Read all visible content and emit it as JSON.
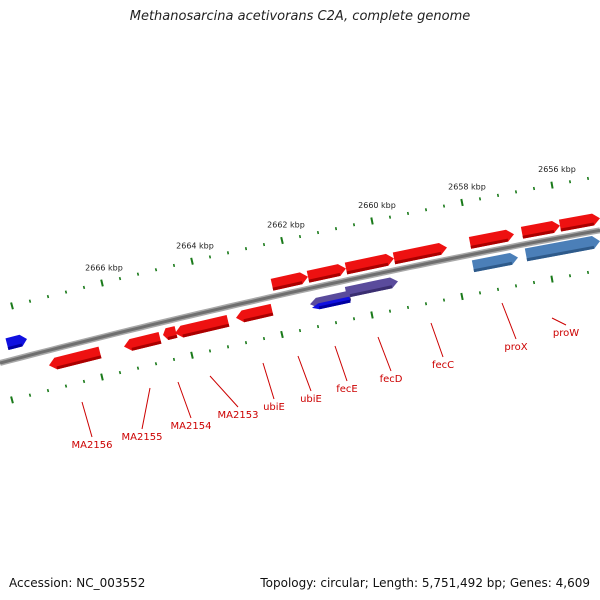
{
  "title": "Methanosarcina acetivorans C2A, complete genome",
  "footer": {
    "accession": "Accession: NC_003552",
    "summary": "Topology: circular; Length: 5,751,492 bp; Genes: 4,609"
  },
  "colors": {
    "gene": "#ee1111",
    "gene_dark": "#aa0000",
    "rna_steel": "#4b7fb8",
    "rna_purple": "#5a4b9c",
    "rna_blue": "#1010e0",
    "backbone": "#808080",
    "ticks": "#1a7a1a",
    "label": "#cc0000"
  },
  "kbp_labels": [
    "2666 kbp",
    "2664 kbp",
    "2662 kbp",
    "2660 kbp",
    "2658 kbp",
    "2656 kbp"
  ],
  "gene_labels": [
    "MA2156",
    "MA2155",
    "MA2154",
    "MA2153",
    "ubiE",
    "ubiE",
    "fecE",
    "fecD",
    "fecC",
    "proX",
    "proW"
  ]
}
